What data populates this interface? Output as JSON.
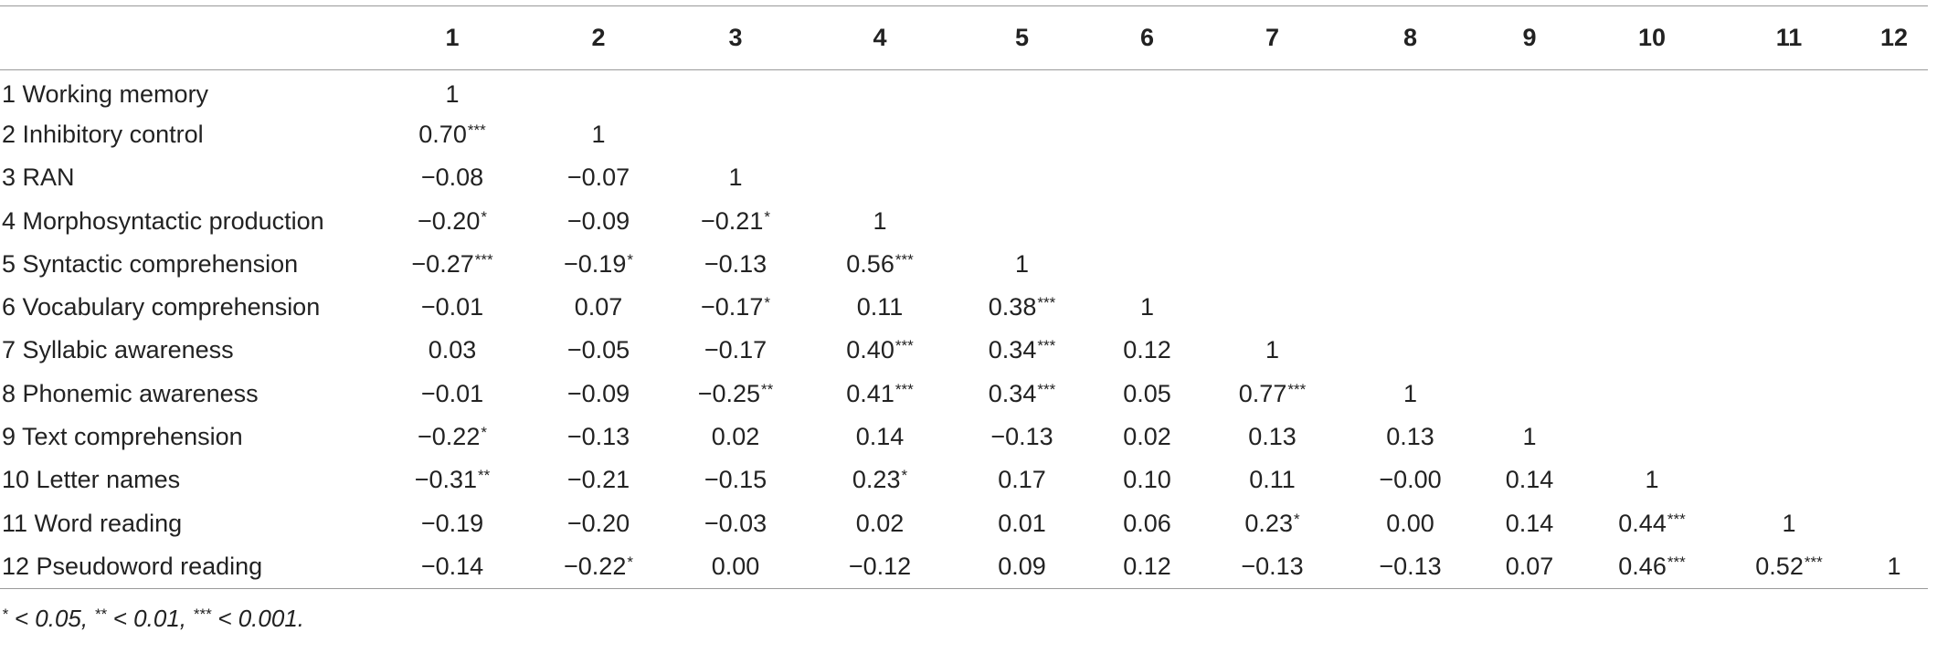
{
  "table": {
    "columns": [
      "",
      "1",
      "2",
      "3",
      "4",
      "5",
      "6",
      "7",
      "8",
      "9",
      "10",
      "11",
      "12"
    ],
    "rows": [
      {
        "label": "1 Working memory",
        "cells": [
          {
            "v": "1",
            "s": ""
          }
        ]
      },
      {
        "label": "2 Inhibitory control",
        "cells": [
          {
            "v": "0.70",
            "s": "***"
          },
          {
            "v": "1",
            "s": ""
          }
        ]
      },
      {
        "label": "3 RAN",
        "cells": [
          {
            "v": "−0.08",
            "s": ""
          },
          {
            "v": "−0.07",
            "s": ""
          },
          {
            "v": "1",
            "s": ""
          }
        ]
      },
      {
        "label": "4 Morphosyntactic production",
        "cells": [
          {
            "v": "−0.20",
            "s": "*"
          },
          {
            "v": "−0.09",
            "s": ""
          },
          {
            "v": "−0.21",
            "s": "*"
          },
          {
            "v": "1",
            "s": ""
          }
        ]
      },
      {
        "label": "5 Syntactic comprehension",
        "cells": [
          {
            "v": "−0.27",
            "s": "***"
          },
          {
            "v": "−0.19",
            "s": "*"
          },
          {
            "v": "−0.13",
            "s": ""
          },
          {
            "v": "0.56",
            "s": "***"
          },
          {
            "v": "1",
            "s": ""
          }
        ]
      },
      {
        "label": "6 Vocabulary comprehension",
        "cells": [
          {
            "v": "−0.01",
            "s": ""
          },
          {
            "v": "0.07",
            "s": ""
          },
          {
            "v": "−0.17",
            "s": "*"
          },
          {
            "v": "0.11",
            "s": ""
          },
          {
            "v": "0.38",
            "s": "***"
          },
          {
            "v": "1",
            "s": ""
          }
        ]
      },
      {
        "label": "7 Syllabic awareness",
        "cells": [
          {
            "v": "0.03",
            "s": ""
          },
          {
            "v": "−0.05",
            "s": ""
          },
          {
            "v": "−0.17",
            "s": ""
          },
          {
            "v": "0.40",
            "s": "***"
          },
          {
            "v": "0.34",
            "s": "***"
          },
          {
            "v": "0.12",
            "s": ""
          },
          {
            "v": "1",
            "s": ""
          }
        ]
      },
      {
        "label": "8 Phonemic awareness",
        "cells": [
          {
            "v": "−0.01",
            "s": ""
          },
          {
            "v": "−0.09",
            "s": ""
          },
          {
            "v": "−0.25",
            "s": "**"
          },
          {
            "v": "0.41",
            "s": "***"
          },
          {
            "v": "0.34",
            "s": "***"
          },
          {
            "v": "0.05",
            "s": ""
          },
          {
            "v": "0.77",
            "s": "***"
          },
          {
            "v": "1",
            "s": ""
          }
        ]
      },
      {
        "label": "9 Text comprehension",
        "cells": [
          {
            "v": "−0.22",
            "s": "*"
          },
          {
            "v": "−0.13",
            "s": ""
          },
          {
            "v": "0.02",
            "s": ""
          },
          {
            "v": "0.14",
            "s": ""
          },
          {
            "v": "−0.13",
            "s": ""
          },
          {
            "v": "0.02",
            "s": ""
          },
          {
            "v": "0.13",
            "s": ""
          },
          {
            "v": "0.13",
            "s": ""
          },
          {
            "v": "1",
            "s": ""
          }
        ]
      },
      {
        "label": "10 Letter names",
        "cells": [
          {
            "v": "−0.31",
            "s": "**"
          },
          {
            "v": "−0.21",
            "s": ""
          },
          {
            "v": "−0.15",
            "s": ""
          },
          {
            "v": "0.23",
            "s": "*"
          },
          {
            "v": "0.17",
            "s": ""
          },
          {
            "v": "0.10",
            "s": ""
          },
          {
            "v": "0.11",
            "s": ""
          },
          {
            "v": "−0.00",
            "s": ""
          },
          {
            "v": "0.14",
            "s": ""
          },
          {
            "v": "1",
            "s": ""
          }
        ]
      },
      {
        "label": "11 Word reading",
        "cells": [
          {
            "v": "−0.19",
            "s": ""
          },
          {
            "v": "−0.20",
            "s": ""
          },
          {
            "v": "−0.03",
            "s": ""
          },
          {
            "v": "0.02",
            "s": ""
          },
          {
            "v": "0.01",
            "s": ""
          },
          {
            "v": "0.06",
            "s": ""
          },
          {
            "v": "0.23",
            "s": "*"
          },
          {
            "v": "0.00",
            "s": ""
          },
          {
            "v": "0.14",
            "s": ""
          },
          {
            "v": "0.44",
            "s": "***"
          },
          {
            "v": "1",
            "s": ""
          }
        ]
      },
      {
        "label": "12 Pseudoword reading",
        "cells": [
          {
            "v": "−0.14",
            "s": ""
          },
          {
            "v": "−0.22",
            "s": "*"
          },
          {
            "v": "0.00",
            "s": ""
          },
          {
            "v": "−0.12",
            "s": ""
          },
          {
            "v": "0.09",
            "s": ""
          },
          {
            "v": "0.12",
            "s": ""
          },
          {
            "v": "−0.13",
            "s": ""
          },
          {
            "v": "−0.13",
            "s": ""
          },
          {
            "v": "0.07",
            "s": ""
          },
          {
            "v": "0.46",
            "s": "***"
          },
          {
            "v": "0.52",
            "s": "***"
          },
          {
            "v": "1",
            "s": ""
          }
        ]
      }
    ]
  },
  "footnote": {
    "p05_mark": "*",
    "p05_text": " < 0.05, ",
    "p01_mark": "**",
    "p01_text": " < 0.01, ",
    "p001_mark": "***",
    "p001_text": " < 0.001."
  }
}
